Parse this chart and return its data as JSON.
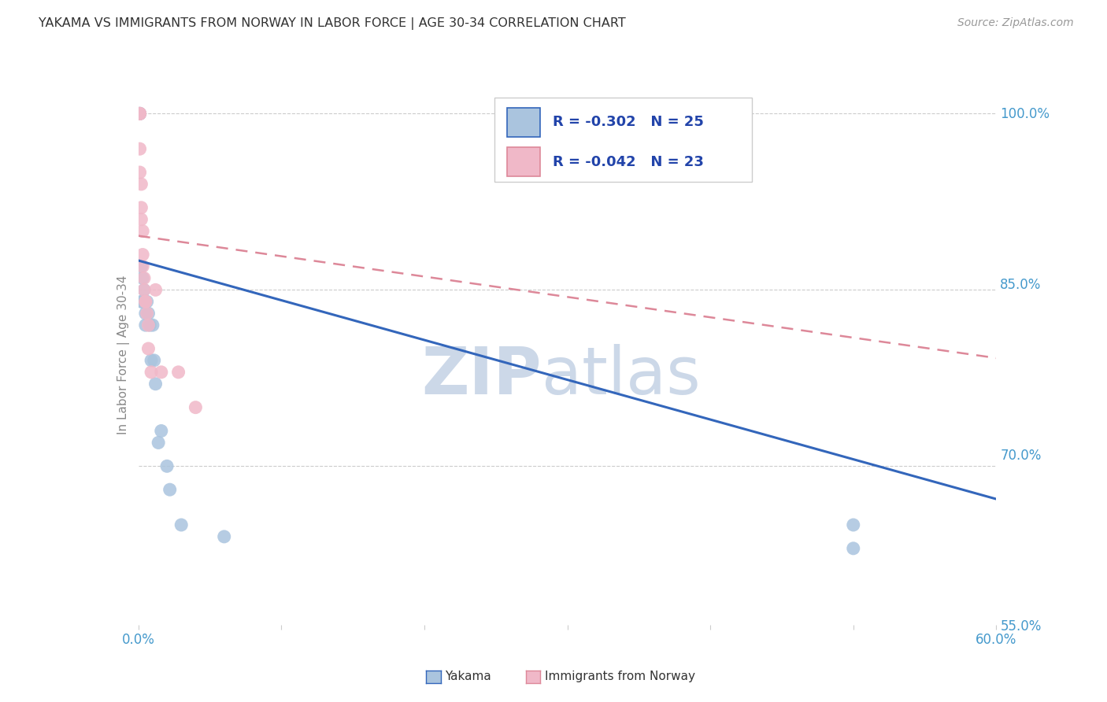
{
  "title": "YAKAMA VS IMMIGRANTS FROM NORWAY IN LABOR FORCE | AGE 30-34 CORRELATION CHART",
  "source": "Source: ZipAtlas.com",
  "ylabel_label": "In Labor Force | Age 30-34",
  "legend_label_blue": "Yakama",
  "legend_label_pink": "Immigrants from Norway",
  "R_blue": -0.302,
  "N_blue": 25,
  "R_pink": -0.042,
  "N_pink": 23,
  "xlim": [
    0.0,
    0.6
  ],
  "ylim": [
    0.565,
    1.025
  ],
  "xticks": [
    0.0,
    0.1,
    0.2,
    0.3,
    0.4,
    0.5,
    0.6
  ],
  "xticklabels": [
    "0.0%",
    "",
    "",
    "",
    "",
    "",
    "60.0%"
  ],
  "yticks_right": [
    1.0,
    0.85,
    0.7,
    0.55
  ],
  "ytick_labels_right": [
    "100.0%",
    "85.0%",
    "70.0%",
    "55.0%"
  ],
  "yakama_x": [
    0.001,
    0.001,
    0.001,
    0.002,
    0.002,
    0.003,
    0.003,
    0.004,
    0.005,
    0.005,
    0.006,
    0.007,
    0.008,
    0.009,
    0.01,
    0.011,
    0.012,
    0.014,
    0.016,
    0.02,
    0.022,
    0.03,
    0.06,
    0.5,
    0.5
  ],
  "yakama_y": [
    1.0,
    1.0,
    1.0,
    0.87,
    0.84,
    0.86,
    0.84,
    0.85,
    0.83,
    0.82,
    0.84,
    0.83,
    0.82,
    0.79,
    0.82,
    0.79,
    0.77,
    0.72,
    0.73,
    0.7,
    0.68,
    0.65,
    0.64,
    0.65,
    0.63
  ],
  "norway_x": [
    0.001,
    0.001,
    0.001,
    0.001,
    0.001,
    0.002,
    0.002,
    0.002,
    0.003,
    0.003,
    0.003,
    0.004,
    0.004,
    0.005,
    0.005,
    0.006,
    0.007,
    0.007,
    0.009,
    0.012,
    0.016,
    0.028,
    0.04
  ],
  "norway_y": [
    1.0,
    1.0,
    1.0,
    0.97,
    0.95,
    0.94,
    0.92,
    0.91,
    0.9,
    0.88,
    0.87,
    0.86,
    0.85,
    0.84,
    0.84,
    0.83,
    0.82,
    0.8,
    0.78,
    0.85,
    0.78,
    0.78,
    0.75
  ],
  "blue_trend_x": [
    0.0,
    0.6
  ],
  "blue_trend_y": [
    0.875,
    0.672
  ],
  "pink_trend_x": [
    0.0,
    0.6
  ],
  "pink_trend_y": [
    0.896,
    0.792
  ],
  "blue_color": "#aac4de",
  "pink_color": "#f0b8c8",
  "blue_line_color": "#3366bb",
  "pink_line_color": "#dd8899",
  "watermark_top": "ZIP",
  "watermark_bot": "atlas",
  "watermark_color": "#ccd8e8",
  "background_color": "#ffffff",
  "grid_color": "#cccccc"
}
